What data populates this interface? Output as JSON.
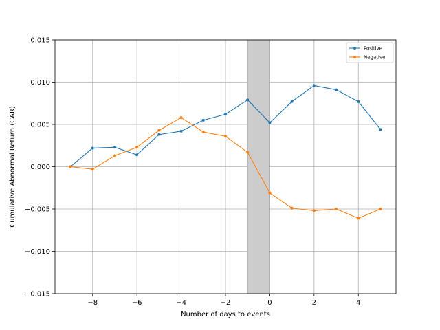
{
  "chart_data": {
    "type": "line",
    "title": "",
    "xlabel": "Number of days to events",
    "ylabel": "Cumulative Abnormal Return (CAR)",
    "xlim": [
      -9.7,
      5.7
    ],
    "ylim": [
      -0.015,
      0.015
    ],
    "x_ticks": [
      -8,
      -6,
      -4,
      -2,
      0,
      2,
      4
    ],
    "x_tick_labels": [
      "−8",
      "−6",
      "−4",
      "−2",
      "0",
      "2",
      "4"
    ],
    "y_ticks": [
      -0.015,
      -0.01,
      -0.005,
      0.0,
      0.005,
      0.01,
      0.015
    ],
    "y_tick_labels": [
      "−0.015",
      "−0.010",
      "−0.005",
      "0.000",
      "0.005",
      "0.010",
      "0.015"
    ],
    "grid": true,
    "legend_position": "top-right",
    "shaded_region": {
      "x_start": -1,
      "x_end": 0,
      "color": "#cccccc"
    },
    "x": [
      -9,
      -8,
      -7,
      -6,
      -5,
      -4,
      -3,
      -2,
      -1,
      0,
      1,
      2,
      3,
      4,
      5
    ],
    "series": [
      {
        "name": "Positive",
        "color": "#1f77b4",
        "values": [
          0.0,
          0.0022,
          0.0023,
          0.0014,
          0.0038,
          0.0042,
          0.0055,
          0.0062,
          0.0079,
          0.0052,
          0.0077,
          0.0096,
          0.0091,
          0.0077,
          0.0044
        ]
      },
      {
        "name": "Negative",
        "color": "#ff7f0e",
        "values": [
          0.0,
          -0.0003,
          0.0013,
          0.0023,
          0.0043,
          0.0058,
          0.0041,
          0.0036,
          0.0017,
          -0.0031,
          -0.0049,
          -0.0052,
          -0.005,
          -0.0061,
          -0.005
        ]
      }
    ]
  }
}
